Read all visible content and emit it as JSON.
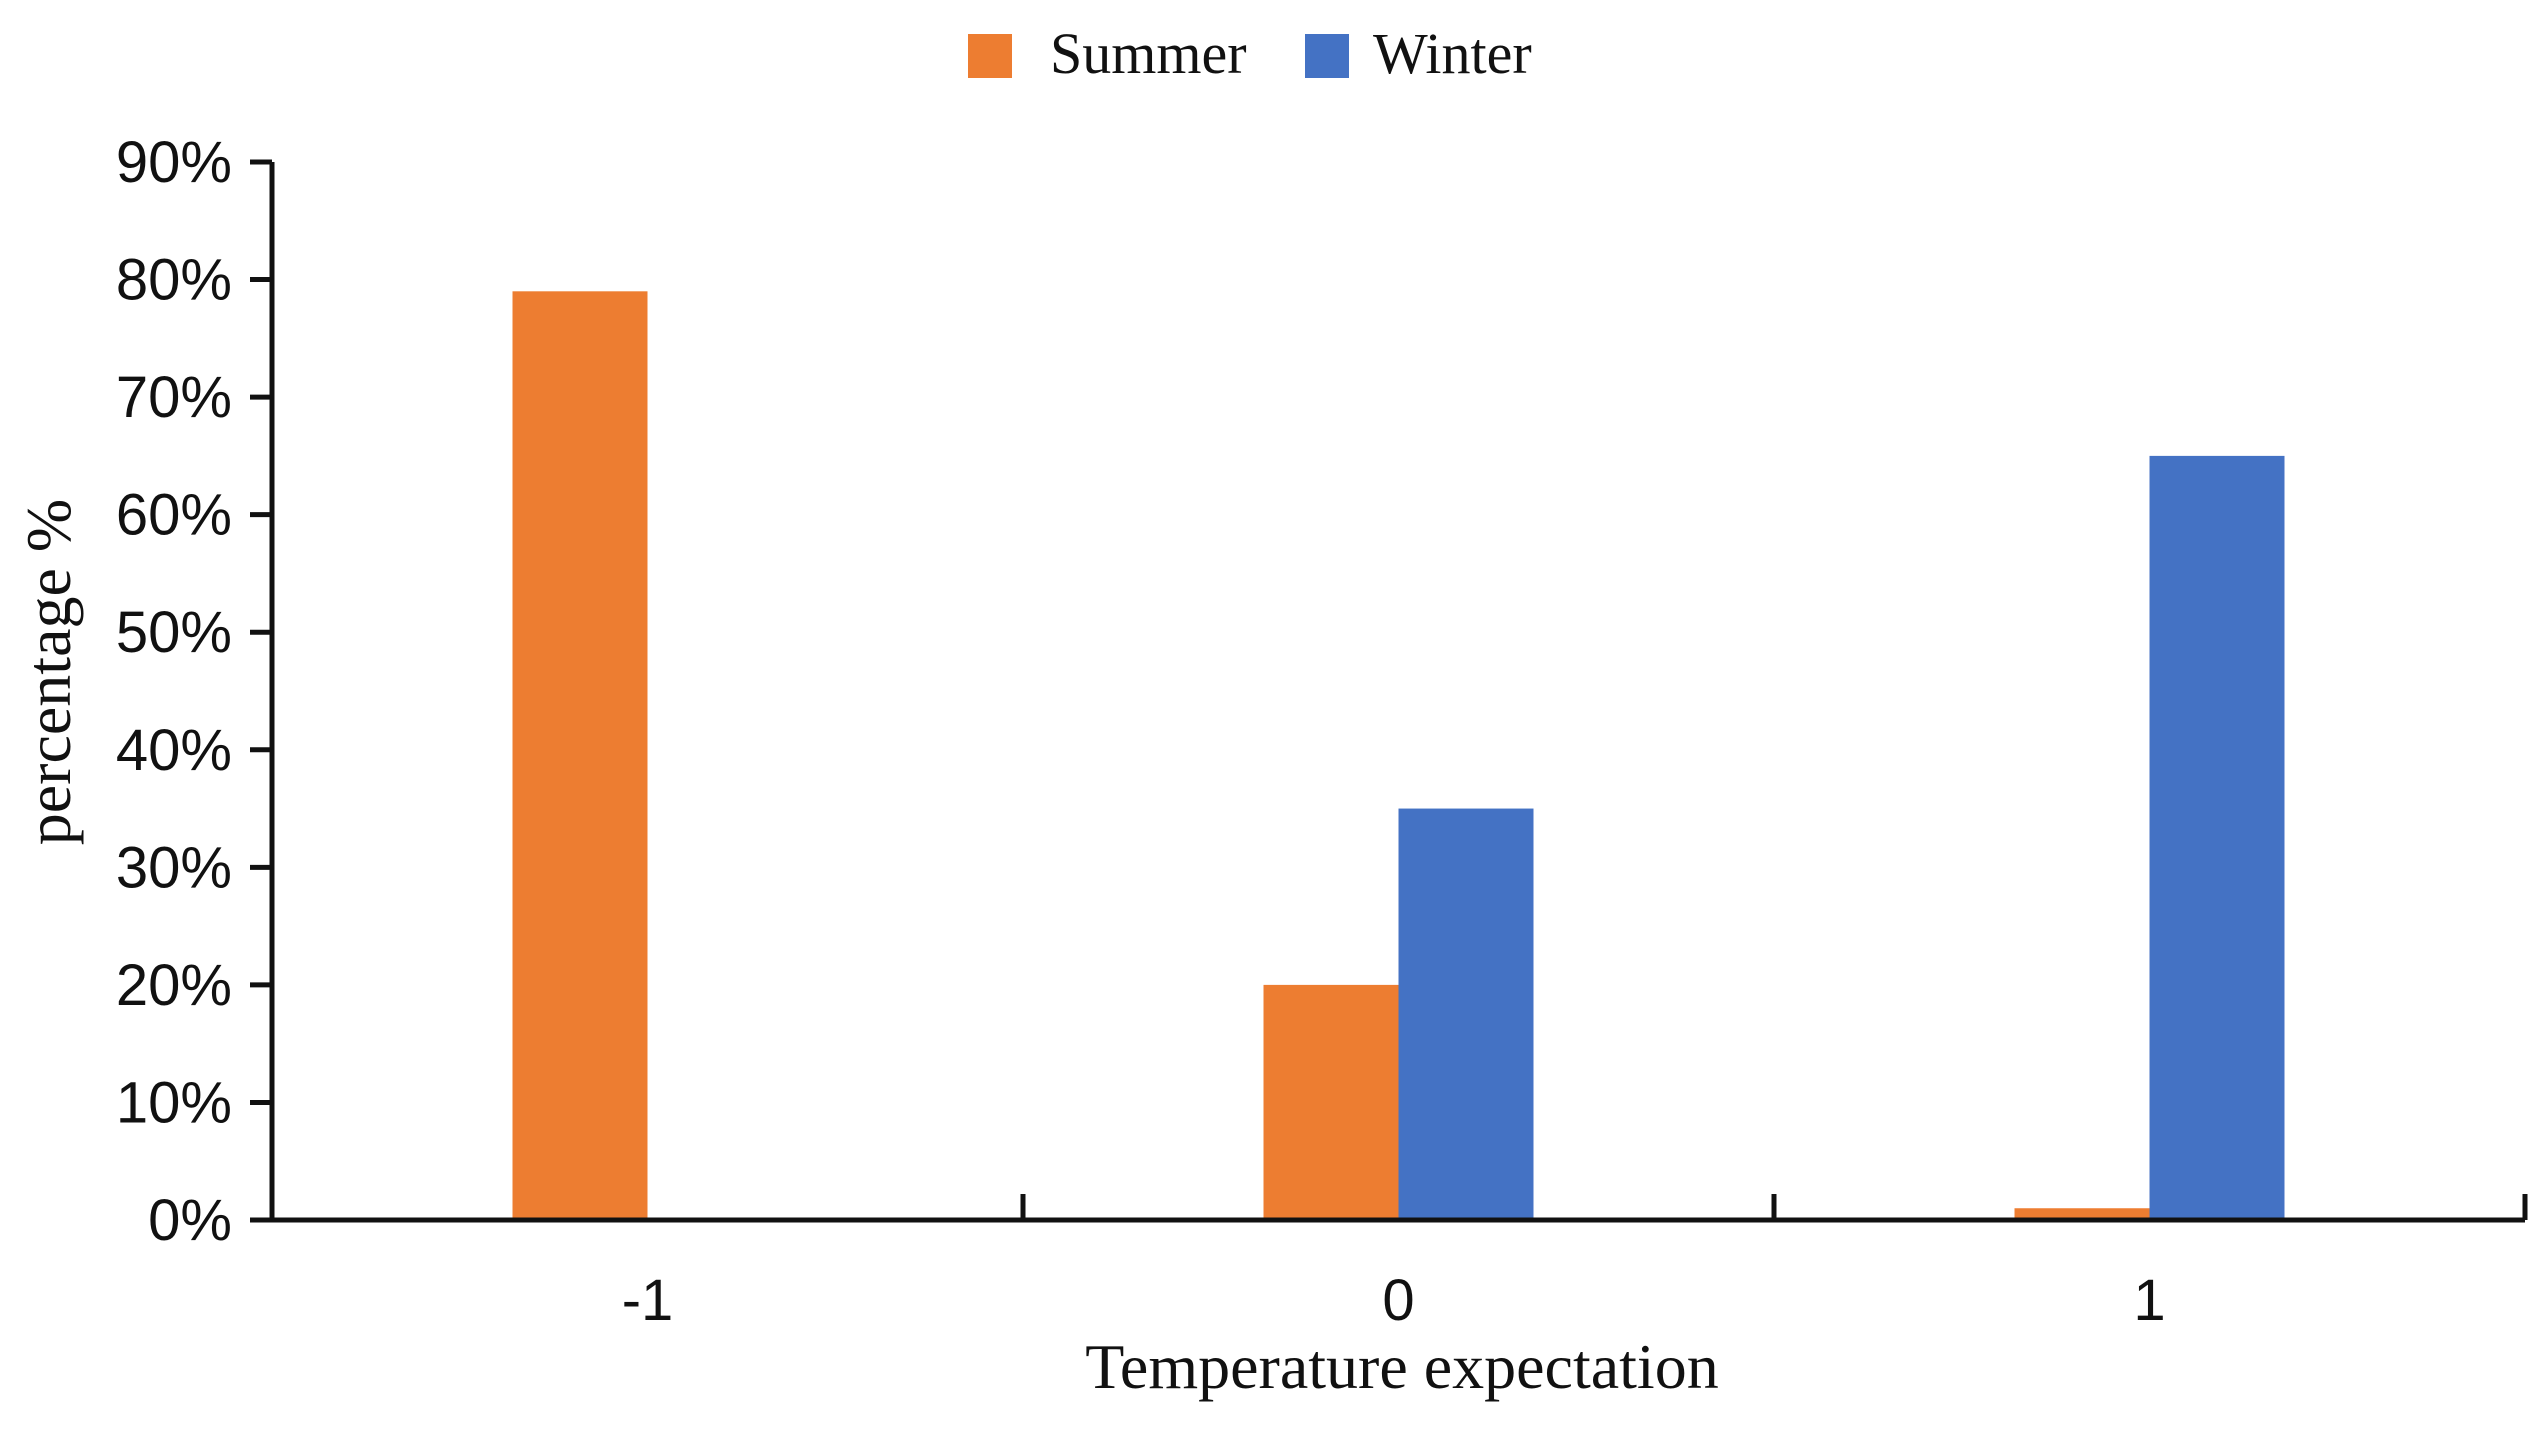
{
  "chart_data": {
    "type": "bar",
    "title": "",
    "categories": [
      "-1",
      "0",
      "1"
    ],
    "series": [
      {
        "name": "Summer",
        "color": "#ED7D31",
        "values": [
          79,
          20,
          1
        ]
      },
      {
        "name": "Winter",
        "color": "#4472C4",
        "values": [
          0,
          35,
          65
        ]
      }
    ],
    "xlabel": "Temperature expectation",
    "ylabel": "percentage %",
    "ylim": [
      0,
      90
    ],
    "yticks": [
      0,
      10,
      20,
      30,
      40,
      50,
      60,
      70,
      80,
      90
    ],
    "ytick_labels": [
      "0%",
      "10%",
      "20%",
      "30%",
      "40%",
      "50%",
      "60%",
      "70%",
      "80%",
      "90%"
    ],
    "grid": false,
    "legend_position": "top-center"
  }
}
